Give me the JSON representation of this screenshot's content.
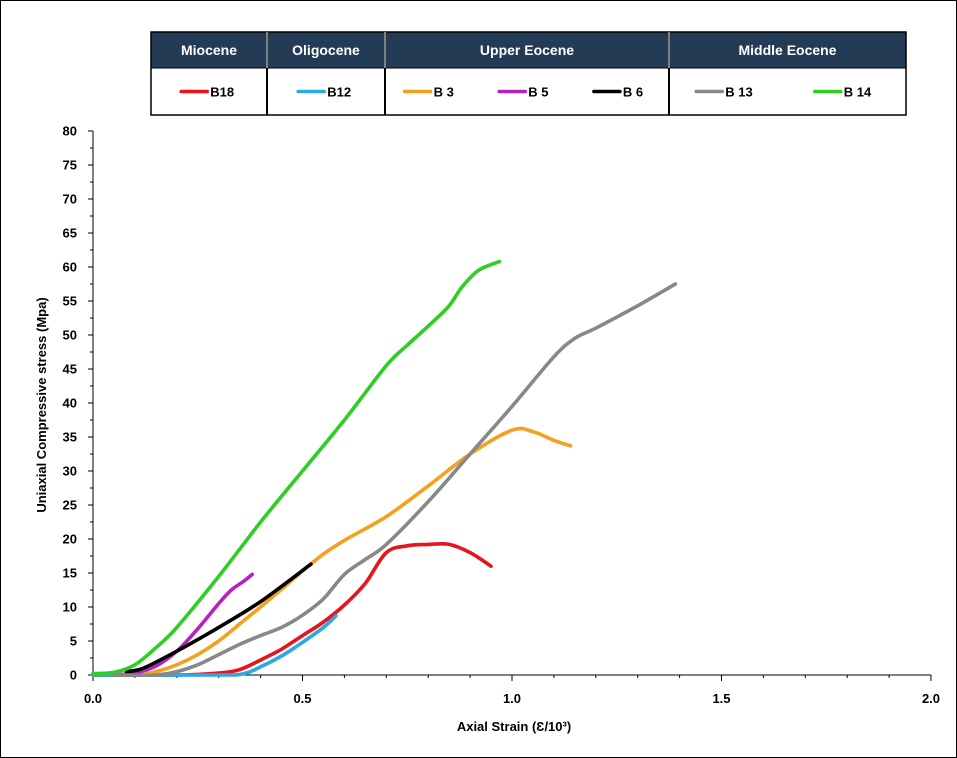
{
  "chart_data": {
    "type": "line",
    "xlabel": "Axial Strain (Ɛ/10³)",
    "ylabel": "Uniaxial Compressive stress (Mpa)",
    "xlim": [
      0,
      2.0
    ],
    "ylim": [
      0,
      80
    ],
    "xticks": [
      "0.0",
      "0.5",
      "1.0",
      "1.5",
      "2.0"
    ],
    "xtick_values": [
      0,
      0.5,
      1.0,
      1.5,
      2.0
    ],
    "yticks": [
      "0",
      "5",
      "10",
      "15",
      "20",
      "25",
      "30",
      "35",
      "40",
      "45",
      "50",
      "55",
      "60",
      "65",
      "70",
      "75",
      "80"
    ],
    "ytick_values": [
      0,
      5,
      10,
      15,
      20,
      25,
      30,
      35,
      40,
      45,
      50,
      55,
      60,
      65,
      70,
      75,
      80
    ],
    "grid": false,
    "legend_groups": [
      {
        "label": "Miocene",
        "series": [
          "B18"
        ]
      },
      {
        "label": "Oligocene",
        "series": [
          "B12"
        ]
      },
      {
        "label": "Upper Eocene",
        "series": [
          "B 3",
          "B 5",
          "B 6"
        ]
      },
      {
        "label": "Middle Eocene",
        "series": [
          "B 13",
          "B 14"
        ]
      }
    ],
    "legend_placement": "top (grouped table)",
    "header_color": "#243B55",
    "series": [
      {
        "name": "B18",
        "color": "#E8141B",
        "x": [
          0.0,
          0.2,
          0.3,
          0.35,
          0.4,
          0.45,
          0.5,
          0.55,
          0.6,
          0.65,
          0.7,
          0.75,
          0.8,
          0.85,
          0.9,
          0.95
        ],
        "y": [
          0,
          0,
          0.3,
          0.8,
          2.2,
          3.8,
          5.8,
          7.8,
          10.3,
          13.5,
          18.0,
          19.0,
          19.2,
          19.2,
          18.0,
          16.0
        ]
      },
      {
        "name": "B12",
        "color": "#2BA9E1",
        "x": [
          0.0,
          0.3,
          0.36,
          0.4,
          0.45,
          0.5,
          0.55,
          0.58
        ],
        "y": [
          0,
          0,
          0.2,
          1.2,
          2.8,
          4.8,
          7.0,
          8.7
        ]
      },
      {
        "name": "B 3",
        "color": "#F5A01F",
        "x": [
          0.05,
          0.1,
          0.15,
          0.2,
          0.25,
          0.3,
          0.35,
          0.4,
          0.45,
          0.5,
          0.55,
          0.6,
          0.7,
          0.8,
          0.9,
          1.0,
          1.05,
          1.1,
          1.14
        ],
        "y": [
          0,
          0,
          0.5,
          1.5,
          3.0,
          5.0,
          7.5,
          10.0,
          12.6,
          15.3,
          17.8,
          19.8,
          23.3,
          27.8,
          32.5,
          36.0,
          35.8,
          34.5,
          33.7
        ]
      },
      {
        "name": "B 5",
        "color": "#B620C1",
        "x": [
          0.05,
          0.1,
          0.15,
          0.2,
          0.25,
          0.3,
          0.33,
          0.36,
          0.38
        ],
        "y": [
          0,
          0.3,
          1.3,
          3.5,
          6.8,
          10.5,
          12.5,
          13.8,
          14.8
        ]
      },
      {
        "name": "B 6",
        "color": "#000000",
        "x": [
          0.08,
          0.12,
          0.2,
          0.3,
          0.4,
          0.52
        ],
        "y": [
          0.5,
          1.0,
          3.5,
          7.0,
          10.8,
          16.3
        ]
      },
      {
        "name": "B 13",
        "color": "#888888",
        "x": [
          0.05,
          0.15,
          0.2,
          0.25,
          0.3,
          0.35,
          0.4,
          0.45,
          0.5,
          0.55,
          0.6,
          0.65,
          0.7,
          0.8,
          0.9,
          1.0,
          1.1,
          1.15,
          1.2,
          1.3,
          1.39
        ],
        "y": [
          0,
          0,
          0.5,
          1.5,
          3.0,
          4.5,
          5.8,
          7.0,
          8.8,
          11.2,
          14.8,
          17.0,
          19.2,
          25.5,
          32.5,
          39.5,
          46.8,
          49.5,
          51.0,
          54.3,
          57.5
        ]
      },
      {
        "name": "B 14",
        "color": "#2CCF22",
        "x": [
          0.0,
          0.05,
          0.1,
          0.15,
          0.2,
          0.3,
          0.4,
          0.5,
          0.6,
          0.7,
          0.75,
          0.8,
          0.85,
          0.88,
          0.92,
          0.97
        ],
        "y": [
          0.2,
          0.4,
          1.5,
          4.0,
          7.0,
          14.5,
          22.5,
          30.0,
          37.5,
          45.5,
          48.5,
          51.3,
          54.3,
          57.0,
          59.5,
          60.8
        ]
      }
    ]
  }
}
